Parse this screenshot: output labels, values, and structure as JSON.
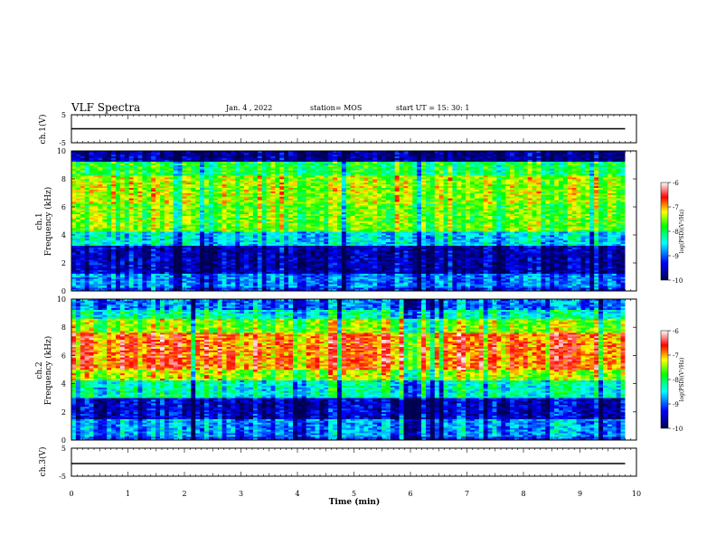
{
  "header": {
    "title": "VLF Spectra",
    "date": "Jan. 4 , 2022",
    "station": "station= MOS",
    "start_ut": "start UT =  15: 30: 1"
  },
  "chart_data": [
    {
      "type": "line",
      "name": "ch1-voltage",
      "ylabel": "ch.1(V)",
      "ylim": [
        -5,
        5
      ],
      "y_ticks": [
        "5",
        "-5"
      ],
      "xlim": [
        0,
        10
      ],
      "series": [
        {
          "x": [
            0,
            9.8
          ],
          "y": [
            0,
            0
          ]
        }
      ]
    },
    {
      "type": "heatmap",
      "name": "ch1-spectrogram",
      "ylabel": "ch.1\nFrequency (kHz)",
      "ylim": [
        0,
        10
      ],
      "y_ticks": [
        "0",
        "2",
        "4",
        "6",
        "8",
        "10"
      ],
      "xlim": [
        0,
        10
      ],
      "data_xmax": 9.8,
      "colorbar": {
        "label": "log(PSD)(V²/Hz)",
        "range": [
          -10,
          -6
        ],
        "ticks": [
          "-6",
          "-7",
          "-8",
          "-9",
          "-10"
        ]
      },
      "bands": [
        {
          "f0": 0.0,
          "f1": 0.3,
          "level": -9.2
        },
        {
          "f0": 0.3,
          "f1": 1.2,
          "level": -8.9
        },
        {
          "f0": 1.2,
          "f1": 3.2,
          "level": -9.6
        },
        {
          "f0": 3.2,
          "f1": 4.3,
          "level": -8.5
        },
        {
          "f0": 4.3,
          "f1": 6.2,
          "level": -7.6
        },
        {
          "f0": 6.2,
          "f1": 8.2,
          "level": -7.4
        },
        {
          "f0": 8.2,
          "f1": 9.2,
          "level": -7.9
        },
        {
          "f0": 9.2,
          "f1": 10.0,
          "level": -9.7
        }
      ]
    },
    {
      "type": "heatmap",
      "name": "ch2-spectrogram",
      "ylabel": "ch.2\nFrequency (kHz)",
      "ylim": [
        0,
        10
      ],
      "y_ticks": [
        "0",
        "2",
        "4",
        "6",
        "8",
        "10"
      ],
      "xlim": [
        0,
        10
      ],
      "data_xmax": 9.8,
      "colorbar": {
        "label": "log(PSD)(V²/Hz)",
        "range": [
          -10,
          -6
        ],
        "ticks": [
          "-6",
          "-7",
          "-8",
          "-9",
          "-10"
        ]
      },
      "bands": [
        {
          "f0": 0.0,
          "f1": 0.3,
          "level": -9.2
        },
        {
          "f0": 0.3,
          "f1": 1.5,
          "level": -8.8
        },
        {
          "f0": 1.5,
          "f1": 3.0,
          "level": -9.5
        },
        {
          "f0": 3.0,
          "f1": 4.2,
          "level": -8.3
        },
        {
          "f0": 4.2,
          "f1": 5.0,
          "level": -7.4
        },
        {
          "f0": 5.0,
          "f1": 7.6,
          "level": -6.8
        },
        {
          "f0": 7.6,
          "f1": 8.6,
          "level": -7.5
        },
        {
          "f0": 8.6,
          "f1": 9.3,
          "level": -8.3
        },
        {
          "f0": 9.3,
          "f1": 10.0,
          "level": -8.9
        }
      ]
    },
    {
      "type": "line",
      "name": "ch3-voltage",
      "ylabel": "ch.3(V)",
      "ylim": [
        -5,
        5
      ],
      "y_ticks": [
        "5",
        "-5"
      ],
      "xlim": [
        0,
        10
      ],
      "series": [
        {
          "x": [
            0,
            9.8
          ],
          "y": [
            -0.5,
            -0.5
          ]
        }
      ]
    }
  ],
  "x_axis": {
    "label": "Time (min)",
    "ticks": [
      "0",
      "1",
      "2",
      "3",
      "4",
      "5",
      "6",
      "7",
      "8",
      "9",
      "10"
    ]
  },
  "colormap": [
    "#000050",
    "#0000ff",
    "#00ffff",
    "#00ff00",
    "#ffff00",
    "#ff0000",
    "#ffffff"
  ]
}
